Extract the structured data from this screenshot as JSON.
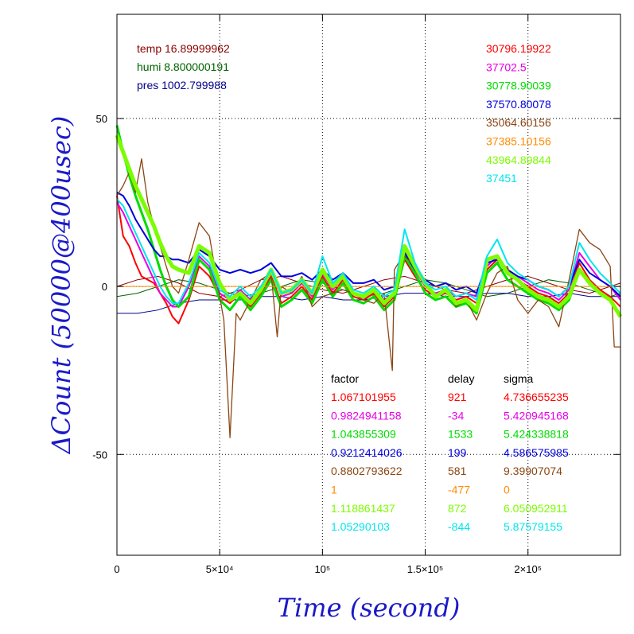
{
  "chart_data": {
    "type": "line",
    "xlabel": "Time (second)",
    "ylabel": "ΔCount (50000@400usec)",
    "xlim": [
      0,
      245000
    ],
    "ylim": [
      -80,
      81
    ],
    "x_ticks": [
      {
        "value": 0,
        "label": "0"
      },
      {
        "value": 50000,
        "label": "5×10⁴"
      },
      {
        "value": 100000,
        "label": "10⁵"
      },
      {
        "value": 150000,
        "label": "1.5×10⁵"
      },
      {
        "value": 200000,
        "label": "2×10⁵"
      }
    ],
    "y_ticks": [
      {
        "value": 50,
        "label": "50"
      },
      {
        "value": 0,
        "label": "0"
      },
      {
        "value": -50,
        "label": "-50"
      }
    ],
    "grid": true,
    "env": [
      {
        "label": "temp 16.89999962",
        "color": "#8b0000"
      },
      {
        "label": "humi 8.800000191",
        "color": "#006400"
      },
      {
        "label": "pres 1002.799988",
        "color": "#00008b"
      }
    ],
    "table_headers": {
      "factor": "factor",
      "delay": "delay",
      "sigma": "sigma"
    },
    "series": [
      {
        "name": "30796.19922",
        "color": "#ff0000",
        "factor": "1.067101955",
        "delay": "921",
        "sigma": "4.736655235",
        "x": [
          0,
          3000,
          6000,
          9000,
          12000,
          15000,
          18000,
          21000,
          24000,
          27000,
          30000,
          35000,
          40000,
          45000,
          50000,
          55000,
          60000,
          65000,
          70000,
          75000,
          80000,
          85000,
          90000,
          95000,
          100000,
          105000,
          110000,
          115000,
          120000,
          125000,
          130000,
          135000,
          140000,
          145000,
          150000,
          155000,
          160000,
          165000,
          170000,
          175000,
          180000,
          185000,
          190000,
          195000,
          200000,
          205000,
          210000,
          215000,
          220000,
          225000,
          230000,
          235000,
          240000,
          245000
        ],
        "y": [
          27,
          15,
          12,
          7,
          3,
          2,
          1,
          -2,
          -5,
          -9,
          -11,
          -4,
          6,
          3,
          -3,
          -5,
          -2,
          -6,
          -2,
          3,
          -5,
          -3,
          0,
          -4,
          3,
          -2,
          2,
          -3,
          -4,
          -2,
          -6,
          -3,
          8,
          3,
          -1,
          -3,
          -2,
          -4,
          -3,
          -5,
          5,
          8,
          4,
          2,
          0,
          -2,
          -3,
          -5,
          -2,
          7,
          2,
          -1,
          -3,
          -6
        ]
      },
      {
        "name": "37702.5",
        "color": "#e600e6",
        "factor": "0.9824941158",
        "delay": "-34",
        "sigma": "5.420945168",
        "x": [
          0,
          3000,
          6000,
          9000,
          12000,
          15000,
          18000,
          21000,
          24000,
          27000,
          30000,
          35000,
          40000,
          45000,
          50000,
          55000,
          60000,
          65000,
          70000,
          75000,
          80000,
          85000,
          90000,
          95000,
          100000,
          105000,
          110000,
          115000,
          120000,
          125000,
          130000,
          135000,
          140000,
          145000,
          150000,
          155000,
          160000,
          165000,
          170000,
          175000,
          180000,
          185000,
          190000,
          195000,
          200000,
          205000,
          210000,
          215000,
          220000,
          225000,
          230000,
          235000,
          240000,
          245000
        ],
        "y": [
          25,
          22,
          18,
          14,
          10,
          6,
          2,
          -2,
          -4,
          -6,
          -6,
          0,
          9,
          6,
          -2,
          -4,
          -1,
          -4,
          -1,
          4,
          -3,
          -2,
          1,
          -3,
          4,
          -1,
          3,
          -2,
          -3,
          -1,
          -4,
          -2,
          11,
          5,
          0,
          -2,
          -1,
          -3,
          -2,
          -3,
          6,
          9,
          5,
          3,
          1,
          -1,
          -2,
          -4,
          -1,
          10,
          6,
          2,
          0,
          -4
        ]
      },
      {
        "name": "30778.90039",
        "color": "#00dd00",
        "factor": "1.043855309",
        "delay": "1533",
        "sigma": "5.424338818",
        "x": [
          0,
          3000,
          6000,
          9000,
          12000,
          15000,
          18000,
          21000,
          24000,
          27000,
          30000,
          35000,
          40000,
          45000,
          50000,
          55000,
          60000,
          65000,
          70000,
          75000,
          80000,
          85000,
          90000,
          95000,
          100000,
          105000,
          110000,
          115000,
          120000,
          125000,
          130000,
          135000,
          140000,
          145000,
          150000,
          155000,
          160000,
          165000,
          170000,
          175000,
          180000,
          185000,
          190000,
          195000,
          200000,
          205000,
          210000,
          215000,
          220000,
          225000,
          230000,
          235000,
          240000,
          245000
        ],
        "y": [
          48,
          40,
          33,
          27,
          22,
          17,
          11,
          5,
          0,
          -4,
          -6,
          -3,
          8,
          5,
          -4,
          -7,
          -3,
          -7,
          -3,
          2,
          -6,
          -4,
          -1,
          -5,
          2,
          -3,
          1,
          -4,
          -5,
          -3,
          -7,
          -4,
          9,
          4,
          -2,
          -4,
          -3,
          -6,
          -5,
          -8,
          4,
          7,
          2,
          0,
          -2,
          -4,
          -5,
          -7,
          -4,
          5,
          1,
          -2,
          -4,
          -9
        ]
      },
      {
        "name": "37570.80078",
        "color": "#0000dd",
        "factor": "0.9212414026",
        "delay": "199",
        "sigma": "4.586575985",
        "x": [
          0,
          3000,
          6000,
          9000,
          12000,
          15000,
          18000,
          21000,
          24000,
          27000,
          30000,
          35000,
          40000,
          45000,
          50000,
          55000,
          60000,
          65000,
          70000,
          75000,
          80000,
          85000,
          90000,
          95000,
          100000,
          105000,
          110000,
          115000,
          120000,
          125000,
          130000,
          135000,
          140000,
          145000,
          150000,
          155000,
          160000,
          165000,
          170000,
          175000,
          180000,
          185000,
          190000,
          195000,
          200000,
          205000,
          210000,
          215000,
          220000,
          225000,
          230000,
          235000,
          240000,
          245000
        ],
        "y": [
          28,
          27,
          24,
          20,
          17,
          14,
          11,
          9,
          9,
          8,
          8,
          7,
          11,
          9,
          5,
          4,
          5,
          4,
          5,
          7,
          3,
          3,
          4,
          2,
          5,
          2,
          4,
          1,
          1,
          2,
          -1,
          0,
          10,
          5,
          2,
          0,
          1,
          -1,
          0,
          -2,
          7,
          8,
          5,
          3,
          2,
          0,
          -1,
          -3,
          0,
          8,
          4,
          2,
          0,
          -3
        ]
      },
      {
        "name": "35064.60156",
        "color": "#8b4513",
        "factor": "0.8802793622",
        "delay": "581",
        "sigma": "9.39907074",
        "x": [
          0,
          3000,
          6000,
          9000,
          12000,
          15000,
          18000,
          21000,
          24000,
          27000,
          30000,
          35000,
          40000,
          45000,
          50000,
          52000,
          55000,
          58000,
          60000,
          65000,
          70000,
          75000,
          78000,
          80000,
          85000,
          90000,
          95000,
          100000,
          105000,
          110000,
          115000,
          120000,
          125000,
          130000,
          134000,
          135000,
          138000,
          140000,
          145000,
          150000,
          155000,
          160000,
          165000,
          170000,
          175000,
          180000,
          185000,
          190000,
          195000,
          200000,
          205000,
          210000,
          215000,
          220000,
          225000,
          230000,
          235000,
          240000,
          242000,
          245000
        ],
        "y": [
          27,
          30,
          34,
          28,
          38,
          25,
          18,
          12,
          6,
          0,
          -2,
          8,
          19,
          15,
          -3,
          -10,
          -45,
          -8,
          -10,
          -4,
          2,
          4,
          -15,
          0,
          -2,
          3,
          -6,
          -3,
          -2,
          -1,
          -2,
          -4,
          -5,
          -2,
          -25,
          5,
          8,
          9,
          6,
          0,
          -3,
          -1,
          -6,
          -4,
          -10,
          -2,
          4,
          6,
          -4,
          -8,
          -4,
          -6,
          -12,
          2,
          17,
          13,
          11,
          6,
          -18,
          -18
        ]
      },
      {
        "name": "37385.10156",
        "color": "#ff8c00",
        "factor": "1",
        "delay": "-477",
        "sigma": "0",
        "x": [
          0,
          245000
        ],
        "y": [
          0,
          0
        ]
      },
      {
        "name": "43964.89844",
        "color": "#7cfc00",
        "factor": "1.118861437",
        "delay": "872",
        "sigma": "6.050952911",
        "x": [
          0,
          3000,
          6000,
          9000,
          12000,
          15000,
          18000,
          21000,
          24000,
          27000,
          30000,
          35000,
          40000,
          45000,
          50000,
          55000,
          60000,
          65000,
          70000,
          75000,
          80000,
          85000,
          90000,
          95000,
          100000,
          105000,
          110000,
          115000,
          120000,
          125000,
          130000,
          135000,
          140000,
          145000,
          150000,
          155000,
          160000,
          165000,
          170000,
          175000,
          180000,
          185000,
          190000,
          195000,
          200000,
          205000,
          210000,
          215000,
          220000,
          225000,
          230000,
          235000,
          240000,
          245000
        ],
        "y": [
          45,
          40,
          35,
          30,
          26,
          22,
          18,
          13,
          9,
          6,
          5,
          4,
          12,
          10,
          1,
          -4,
          -2,
          -5,
          -1,
          5,
          -2,
          -1,
          2,
          -2,
          5,
          0,
          3,
          -2,
          -3,
          -1,
          -5,
          -2,
          12,
          6,
          1,
          -3,
          -1,
          -5,
          -4,
          -7,
          8,
          9,
          4,
          2,
          -1,
          -3,
          -4,
          -6,
          -3,
          5,
          1,
          -2,
          -4,
          -9
        ]
      },
      {
        "name": "37451",
        "color": "#00e5ee",
        "factor": "1.05290103",
        "delay": "-844",
        "sigma": "5.87579155",
        "x": [
          0,
          3000,
          6000,
          9000,
          12000,
          15000,
          18000,
          21000,
          24000,
          27000,
          30000,
          35000,
          40000,
          45000,
          50000,
          55000,
          60000,
          65000,
          70000,
          75000,
          80000,
          85000,
          90000,
          95000,
          100000,
          105000,
          110000,
          115000,
          120000,
          125000,
          130000,
          135000,
          140000,
          145000,
          150000,
          155000,
          160000,
          165000,
          170000,
          175000,
          180000,
          185000,
          190000,
          195000,
          200000,
          205000,
          210000,
          215000,
          220000,
          225000,
          230000,
          235000,
          240000,
          245000
        ],
        "y": [
          26,
          24,
          20,
          16,
          12,
          8,
          4,
          0,
          -3,
          -5,
          -5,
          1,
          10,
          7,
          -1,
          -3,
          0,
          -3,
          0,
          5,
          -2,
          -1,
          2,
          -2,
          9,
          1,
          4,
          -1,
          -2,
          0,
          -3,
          -1,
          17,
          7,
          1,
          -1,
          0,
          -3,
          -2,
          -4,
          9,
          14,
          7,
          4,
          2,
          0,
          -1,
          -3,
          0,
          13,
          8,
          4,
          1,
          -2
        ]
      }
    ],
    "env_curves": [
      {
        "color": "#8b0000",
        "x": [
          0,
          10000,
          20000,
          30000,
          40000,
          50000,
          60000,
          70000,
          80000,
          90000,
          100000,
          110000,
          120000,
          130000,
          140000,
          150000,
          160000,
          170000,
          180000,
          190000,
          200000,
          210000,
          220000,
          230000,
          240000,
          245000
        ],
        "y": [
          0,
          2,
          3,
          1,
          -2,
          -3,
          -1,
          2,
          3,
          1,
          -1,
          -2,
          0,
          2,
          3,
          1,
          -1,
          -2,
          0,
          2,
          3,
          1,
          -1,
          -2,
          0,
          1
        ]
      },
      {
        "color": "#006400",
        "x": [
          0,
          10000,
          20000,
          30000,
          40000,
          50000,
          60000,
          70000,
          80000,
          90000,
          100000,
          110000,
          120000,
          130000,
          140000,
          150000,
          160000,
          170000,
          180000,
          190000,
          200000,
          210000,
          220000,
          230000,
          240000,
          245000
        ],
        "y": [
          -3,
          -2,
          0,
          2,
          1,
          -1,
          -3,
          -2,
          0,
          2,
          1,
          -1,
          -3,
          -2,
          0,
          2,
          1,
          -1,
          -3,
          -2,
          0,
          2,
          1,
          -1,
          -3,
          -2
        ]
      },
      {
        "color": "#00008b",
        "x": [
          0,
          10000,
          20000,
          30000,
          40000,
          50000,
          60000,
          70000,
          80000,
          90000,
          100000,
          110000,
          120000,
          130000,
          140000,
          150000,
          160000,
          170000,
          180000,
          190000,
          200000,
          210000,
          220000,
          230000,
          240000,
          245000
        ],
        "y": [
          -8,
          -8,
          -7,
          -5,
          -4,
          -4,
          -4,
          -3,
          -3,
          -4,
          -3,
          -4,
          -4,
          -3,
          -2,
          -2,
          -3,
          -3,
          -2,
          -2,
          -3,
          -3,
          -2,
          -3,
          -3,
          -3
        ]
      }
    ]
  }
}
